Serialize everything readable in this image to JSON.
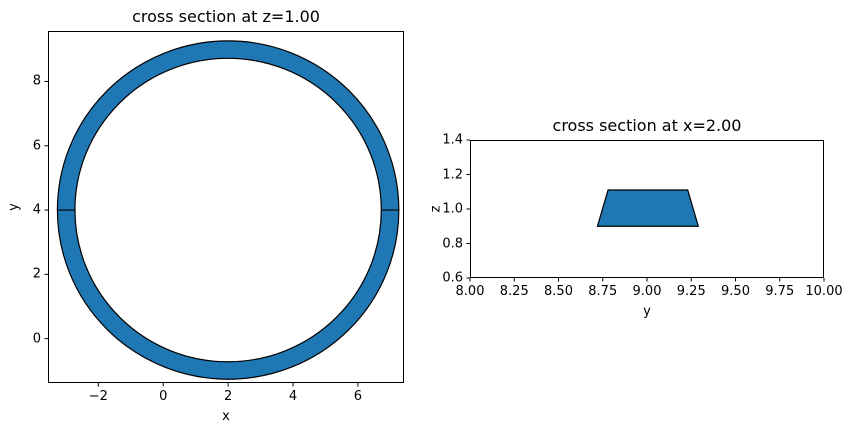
{
  "figure": {
    "background": "#ffffff",
    "text_color": "#000000",
    "spine_color": "#000000"
  },
  "chart_data": [
    {
      "type": "area",
      "plot_kind": "2d-cross-section",
      "title": "cross section at z=1.00",
      "xlabel": "x",
      "ylabel": "y",
      "xlim": [
        -3.55,
        7.42
      ],
      "ylim": [
        -1.38,
        9.57
      ],
      "xticks": [
        -2,
        0,
        2,
        4,
        6
      ],
      "xtick_labels": [
        "−2",
        "0",
        "2",
        "4",
        "6"
      ],
      "yticks": [
        0,
        2,
        4,
        6,
        8
      ],
      "ytick_labels": [
        "0",
        "2",
        "4",
        "6",
        "8"
      ],
      "grid": false,
      "legend": null,
      "shape": {
        "kind": "annulus",
        "center": [
          2.0,
          4.0
        ],
        "outer_radius": 5.26,
        "inner_radius": 4.72,
        "seam_y": 4.0,
        "fill": "#1f77b4",
        "edge_color": "#000000",
        "edge_width": 1.2
      }
    },
    {
      "type": "area",
      "plot_kind": "2d-cross-section",
      "title": "cross section at x=2.00",
      "xlabel": "y",
      "ylabel": "z",
      "xlim": [
        8.0,
        10.0
      ],
      "ylim": [
        0.6,
        1.4
      ],
      "xticks": [
        8.0,
        8.25,
        8.5,
        8.75,
        9.0,
        9.25,
        9.5,
        9.75,
        10.0
      ],
      "xtick_labels": [
        "8.00",
        "8.25",
        "8.50",
        "8.75",
        "9.00",
        "9.25",
        "9.50",
        "9.75",
        "10.00"
      ],
      "yticks": [
        0.6,
        0.8,
        1.0,
        1.2,
        1.4
      ],
      "ytick_labels": [
        "0.6",
        "0.8",
        "1.0",
        "1.2",
        "1.4"
      ],
      "grid": false,
      "legend": null,
      "shape": {
        "kind": "polygon",
        "vertices": [
          [
            8.72,
            0.9
          ],
          [
            9.29,
            0.9
          ],
          [
            9.23,
            1.11
          ],
          [
            8.78,
            1.11
          ]
        ],
        "fill": "#1f77b4",
        "edge_color": "#000000",
        "edge_width": 1.2
      }
    }
  ]
}
